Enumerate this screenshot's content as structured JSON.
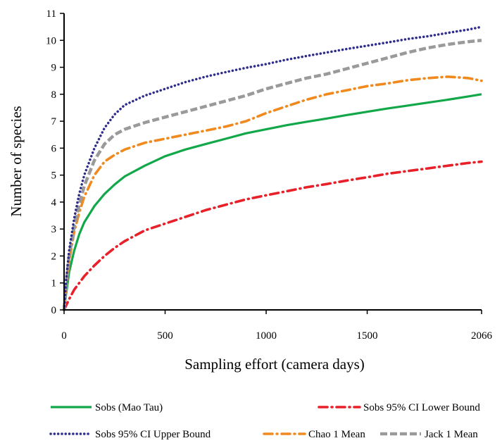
{
  "chart_data": {
    "type": "line",
    "title": "",
    "xlabel": "Sampling effort (camera days)",
    "ylabel": "Number of species",
    "xlim": [
      0,
      2066
    ],
    "ylim": [
      0,
      11
    ],
    "xticks": [
      0,
      500,
      1000,
      1500,
      2066
    ],
    "yticks": [
      0,
      1,
      2,
      3,
      4,
      5,
      6,
      7,
      8,
      9,
      10,
      11
    ],
    "grid": false,
    "legend_position": "bottom",
    "series": [
      {
        "name": "Sobs (Mao Tau)",
        "color": "#12a84a",
        "style": "solid",
        "x": [
          0,
          10,
          25,
          50,
          75,
          100,
          150,
          200,
          250,
          300,
          400,
          500,
          600,
          700,
          800,
          900,
          1000,
          1100,
          1200,
          1300,
          1400,
          1500,
          1600,
          1700,
          1800,
          1900,
          2000,
          2066
        ],
        "y": [
          0,
          0.6,
          1.4,
          2.2,
          2.8,
          3.25,
          3.85,
          4.3,
          4.65,
          4.95,
          5.35,
          5.7,
          5.95,
          6.15,
          6.35,
          6.55,
          6.7,
          6.85,
          6.98,
          7.1,
          7.23,
          7.35,
          7.47,
          7.58,
          7.69,
          7.8,
          7.92,
          8.0
        ]
      },
      {
        "name": "Sobs 95% CI Lower Bound",
        "color": "#e8202a",
        "style": "dashdot",
        "x": [
          0,
          25,
          50,
          100,
          150,
          200,
          250,
          300,
          400,
          500,
          600,
          700,
          800,
          900,
          1000,
          1100,
          1200,
          1300,
          1400,
          1500,
          1600,
          1700,
          1800,
          1900,
          2000,
          2066
        ],
        "y": [
          0,
          0.4,
          0.75,
          1.25,
          1.65,
          2.0,
          2.3,
          2.55,
          2.95,
          3.2,
          3.45,
          3.7,
          3.9,
          4.1,
          4.25,
          4.4,
          4.55,
          4.67,
          4.8,
          4.92,
          5.05,
          5.15,
          5.25,
          5.35,
          5.45,
          5.5
        ]
      },
      {
        "name": "Sobs 95% CI Upper Bound",
        "color": "#2e2c8c",
        "style": "dotted",
        "x": [
          0,
          10,
          25,
          50,
          75,
          100,
          150,
          200,
          250,
          300,
          400,
          500,
          600,
          700,
          800,
          900,
          1000,
          1100,
          1200,
          1300,
          1400,
          1500,
          1600,
          1700,
          1800,
          1900,
          2000,
          2066
        ],
        "y": [
          0,
          1.1,
          2.2,
          3.4,
          4.3,
          5.0,
          6.0,
          6.75,
          7.25,
          7.6,
          7.95,
          8.2,
          8.45,
          8.65,
          8.82,
          8.98,
          9.12,
          9.28,
          9.42,
          9.55,
          9.68,
          9.8,
          9.92,
          10.05,
          10.15,
          10.28,
          10.4,
          10.5
        ]
      },
      {
        "name": "Chao 1 Mean",
        "color": "#f08a1e",
        "style": "dashdot",
        "x": [
          0,
          10,
          25,
          50,
          75,
          100,
          150,
          200,
          250,
          300,
          400,
          500,
          600,
          700,
          800,
          900,
          1000,
          1100,
          1200,
          1300,
          1400,
          1500,
          1600,
          1700,
          1800,
          1900,
          2000,
          2066
        ],
        "y": [
          0,
          0.8,
          1.8,
          2.9,
          3.6,
          4.2,
          5.0,
          5.5,
          5.75,
          5.95,
          6.2,
          6.35,
          6.5,
          6.65,
          6.8,
          7.0,
          7.3,
          7.55,
          7.8,
          8.0,
          8.15,
          8.3,
          8.4,
          8.52,
          8.6,
          8.65,
          8.6,
          8.5
        ]
      },
      {
        "name": "Jack 1 Mean",
        "color": "#9a9a9a",
        "style": "dashed",
        "x": [
          0,
          10,
          25,
          50,
          75,
          100,
          150,
          200,
          250,
          300,
          400,
          500,
          600,
          700,
          800,
          900,
          1000,
          1100,
          1200,
          1300,
          1400,
          1500,
          1600,
          1700,
          1800,
          1900,
          2000,
          2066
        ],
        "y": [
          0,
          1.0,
          2.0,
          3.1,
          3.9,
          4.6,
          5.55,
          6.15,
          6.5,
          6.7,
          6.95,
          7.15,
          7.35,
          7.55,
          7.75,
          7.95,
          8.2,
          8.4,
          8.6,
          8.75,
          8.95,
          9.15,
          9.35,
          9.55,
          9.72,
          9.85,
          9.95,
          10.0
        ]
      }
    ]
  }
}
